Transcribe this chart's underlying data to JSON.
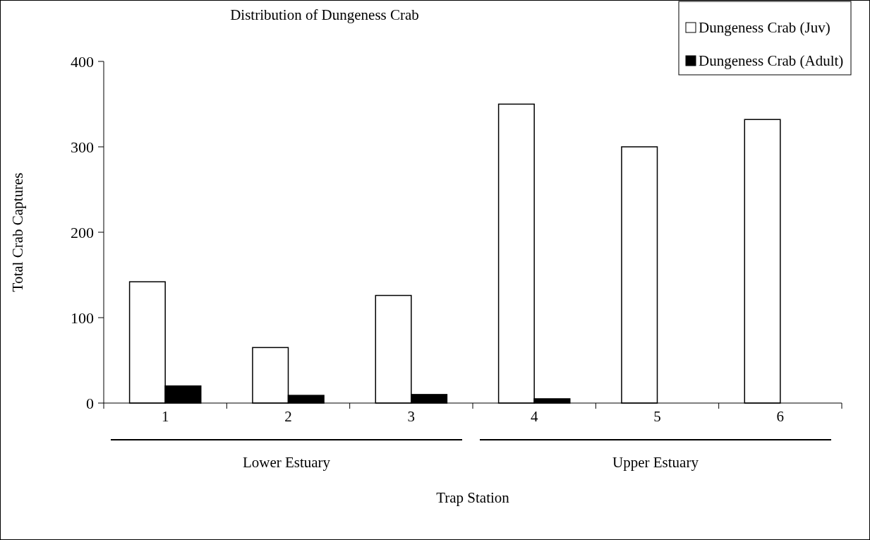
{
  "chart_data": {
    "type": "bar",
    "title": "Distribution of Dungeness Crab",
    "xlabel": "Trap Station",
    "ylabel": "Total Crab Captures",
    "categories": [
      "1",
      "2",
      "3",
      "4",
      "5",
      "6"
    ],
    "series": [
      {
        "name": "Dungeness Crab (Juv)",
        "color": "#ffffff",
        "values": [
          142,
          65,
          126,
          350,
          300,
          332
        ]
      },
      {
        "name": "Dungeness Crab (Adult)",
        "color": "#000000",
        "values": [
          20,
          9,
          10,
          5,
          0,
          0
        ]
      }
    ],
    "ylim": [
      0,
      400
    ],
    "yticks": [
      0,
      100,
      200,
      300,
      400
    ],
    "grid": false,
    "legend": "top right",
    "annotations": [
      "Lower Estuary",
      "Upper Estuary"
    ]
  }
}
